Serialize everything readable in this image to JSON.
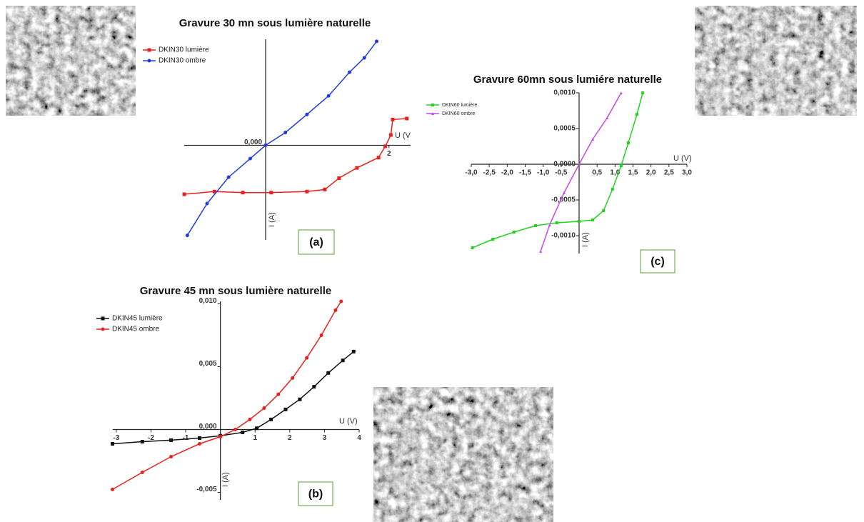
{
  "chart_data": [
    {
      "type": "line",
      "title": "Gravure 30 mn sous lumière naturelle",
      "x_label": "U (V",
      "y_label": "I (A)",
      "panel_label": "(a)",
      "xlim": [
        -1.32,
        2.35
      ],
      "ylim": [
        -0.0092,
        0.0103
      ],
      "xticks": [
        2
      ],
      "yticks": [
        {
          "value": 0,
          "label": "0,000"
        }
      ],
      "series": [
        {
          "name": "DKIN30 lumière",
          "color": "#e8211f",
          "marker": "square",
          "x": [
            -1.32,
            -0.83,
            -0.37,
            0.09,
            0.67,
            0.96,
            1.19,
            1.48,
            1.83,
            1.94,
            2.03,
            2.06,
            2.29
          ],
          "values": [
            -0.00476,
            -0.0045,
            -0.0046,
            -0.0046,
            -0.0045,
            -0.0043,
            -0.0032,
            -0.0022,
            -0.0012,
            -0.0001,
            0.001,
            0.0025,
            0.0026
          ]
        },
        {
          "name": "DKIN30 ombre",
          "color": "#1f3be0",
          "marker": "circle",
          "x": [
            -1.27,
            -0.95,
            -0.6,
            -0.25,
            0,
            0.32,
            0.67,
            1.02,
            1.36,
            1.6,
            1.8
          ],
          "values": [
            -0.00876,
            -0.00566,
            -0.0031,
            -0.0013,
            0,
            0.00124,
            0.003,
            0.0048,
            0.0071,
            0.0085,
            0.0101
          ]
        }
      ]
    },
    {
      "type": "line",
      "title": "Gravure 45 mn sous lumière naturelle",
      "x_label": "U (V)",
      "y_label": "I (A)",
      "panel_label": "(b)",
      "xlim": [
        -3.1,
        4
      ],
      "ylim": [
        -0.0056,
        0.0102
      ],
      "xticks": [
        -3,
        -2,
        -1,
        1,
        2,
        3,
        4
      ],
      "yticks": [
        {
          "value": 0.01,
          "label": "0,010"
        },
        {
          "value": 0.005,
          "label": "0,005"
        },
        {
          "value": 0,
          "label": "0,000"
        },
        {
          "value": -0.005,
          "label": "-0,005"
        }
      ],
      "series": [
        {
          "name": "DKIN45 lumière",
          "color": "#111111",
          "marker": "square",
          "x": [
            -3.11,
            -2.25,
            -1.42,
            -0.6,
            0,
            0.64,
            1.05,
            1.46,
            1.88,
            2.29,
            2.7,
            3.11,
            3.53,
            3.84
          ],
          "values": [
            -0.00114,
            -0.00097,
            -0.00085,
            -0.00068,
            -0.0005,
            -0.00023,
            0.0001,
            0.0008,
            0.0016,
            0.0024,
            0.0034,
            0.0045,
            0.0055,
            0.0062
          ]
        },
        {
          "name": "DKIN45 ombre",
          "color": "#e8211f",
          "marker": "circle",
          "x": [
            -3.11,
            -2.25,
            -1.42,
            -0.6,
            0,
            0.43,
            0.85,
            1.26,
            1.67,
            2.08,
            2.49,
            2.91,
            3.32,
            3.48
          ],
          "values": [
            -0.00477,
            -0.00341,
            -0.00216,
            -0.00114,
            -0.00057,
            0,
            0.0008,
            0.0017,
            0.0028,
            0.0041,
            0.0057,
            0.0075,
            0.0095,
            0.0102
          ]
        }
      ]
    },
    {
      "type": "line",
      "title": "Gravure 60mn sous lumiére naturelle",
      "x_label": "U (V)",
      "y_label": "I (A)",
      "panel_label": "(c)",
      "xlim": [
        -3,
        3
      ],
      "ylim": [
        -0.00125,
        0.001
      ],
      "xticks": [
        {
          "value": -3,
          "label": "-3,0"
        },
        {
          "value": -2.5,
          "label": "-2,5"
        },
        {
          "value": -2,
          "label": "-2,0"
        },
        {
          "value": -1.5,
          "label": "-1,5"
        },
        {
          "value": -1,
          "label": "-1,0"
        },
        {
          "value": -0.5,
          "label": "-0,5"
        },
        {
          "value": 0.5,
          "label": "0,5"
        },
        {
          "value": 1,
          "label": "1,0"
        },
        {
          "value": 1.5,
          "label": "1,5"
        },
        {
          "value": 2,
          "label": "2,0"
        },
        {
          "value": 2.5,
          "label": "2,5"
        },
        {
          "value": 3,
          "label": "3,0"
        }
      ],
      "yticks": [
        {
          "value": 0.001,
          "label": "0,0010"
        },
        {
          "value": 0.0005,
          "label": "0,0005"
        },
        {
          "value": 0,
          "label": "0,0000"
        },
        {
          "value": -0.0005,
          "label": "-0,0005"
        },
        {
          "value": -0.001,
          "label": "-0,0010"
        }
      ],
      "series": [
        {
          "name": "DKIN60 lumière",
          "color": "#22d41f",
          "marker": "square",
          "x": [
            -2.97,
            -2.4,
            -1.81,
            -1.21,
            -0.62,
            0,
            0.38,
            0.68,
            0.93,
            1.17,
            1.37,
            1.61,
            1.77
          ],
          "values": [
            -0.00117,
            -0.00105,
            -0.00095,
            -0.00086,
            -0.00082,
            -0.0008,
            -0.00078,
            -0.00065,
            -0.00035,
            -2e-05,
            0.0003,
            0.0007,
            0.001
          ]
        },
        {
          "name": "DKIN60 ombre",
          "color": "#c449e8",
          "marker": "triangle",
          "x": [
            -1.07,
            -0.82,
            -0.42,
            0,
            0.38,
            0.78,
            1.17
          ],
          "values": [
            -0.00122,
            -0.00085,
            -0.0004,
            0,
            0.00035,
            0.00065,
            0.001
          ]
        }
      ]
    }
  ]
}
